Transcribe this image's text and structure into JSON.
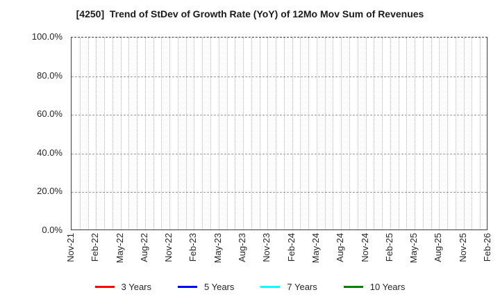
{
  "chart_data": {
    "type": "line",
    "title": "[4250]  Trend of StDev of Growth Rate (YoY) of 12Mo Mov Sum of Revenues",
    "xlabel": "",
    "ylabel": "",
    "ylim": [
      0,
      100
    ],
    "y_tick_labels": [
      "0.0%",
      "20.0%",
      "40.0%",
      "60.0%",
      "80.0%",
      "100.0%"
    ],
    "x_tick_labels": [
      "Nov-21",
      "Feb-22",
      "May-22",
      "Aug-22",
      "Nov-22",
      "Feb-23",
      "May-23",
      "Aug-23",
      "Nov-23",
      "Feb-24",
      "May-24",
      "Aug-24",
      "Nov-24",
      "Feb-25",
      "May-25",
      "Aug-25",
      "Nov-25",
      "Feb-26"
    ],
    "months_between_labeled_ticks": 3,
    "minor_vertical_gridlines": "monthly",
    "grid": true,
    "gridline_colors": {
      "horizontal": "#9a9a9a",
      "vertical": "#b8b8b8"
    },
    "legend_position": "bottom-center",
    "series": [
      {
        "name": "3 Years",
        "color": "#ff0000",
        "values": []
      },
      {
        "name": "5 Years",
        "color": "#0000ff",
        "values": []
      },
      {
        "name": "7 Years",
        "color": "#00ffff",
        "values": []
      },
      {
        "name": "10 Years",
        "color": "#008000",
        "values": []
      }
    ],
    "plotted_data_visible": false
  }
}
